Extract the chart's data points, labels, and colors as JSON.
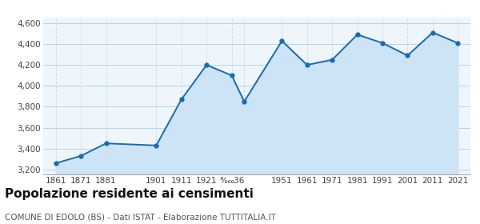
{
  "years": [
    1861,
    1871,
    1881,
    1901,
    1911,
    1921,
    1931,
    1936,
    1951,
    1961,
    1971,
    1981,
    1991,
    2001,
    2011,
    2021
  ],
  "population": [
    3260,
    3330,
    3450,
    3430,
    3870,
    4200,
    4100,
    3850,
    4430,
    4200,
    4250,
    4490,
    4410,
    4290,
    4510,
    4410
  ],
  "ylim": [
    3150,
    4650
  ],
  "yticks": [
    3200,
    3400,
    3600,
    3800,
    4000,
    4200,
    4400,
    4600
  ],
  "xtick_labels": [
    "1861",
    "1871",
    "1881",
    "1901",
    "1911",
    "1921",
    "‱36",
    "",
    "1951",
    "1961",
    "1971",
    "1981",
    "1991",
    "2001",
    "2011",
    "2021"
  ],
  "line_color": "#1a6aaf",
  "fill_color": "#cce4f5",
  "marker_color": "#1a6aaf",
  "bg_color": "#eef6fc",
  "grid_color_h": "#b8d4e8",
  "grid_color_v": "#c8dff0",
  "title": "Popolazione residente ai censimenti",
  "subtitle": "COMUNE DI EDOLO (BS) - Dati ISTAT - Elaborazione TUTTITALIA.IT",
  "title_fontsize": 11,
  "subtitle_fontsize": 7.5
}
